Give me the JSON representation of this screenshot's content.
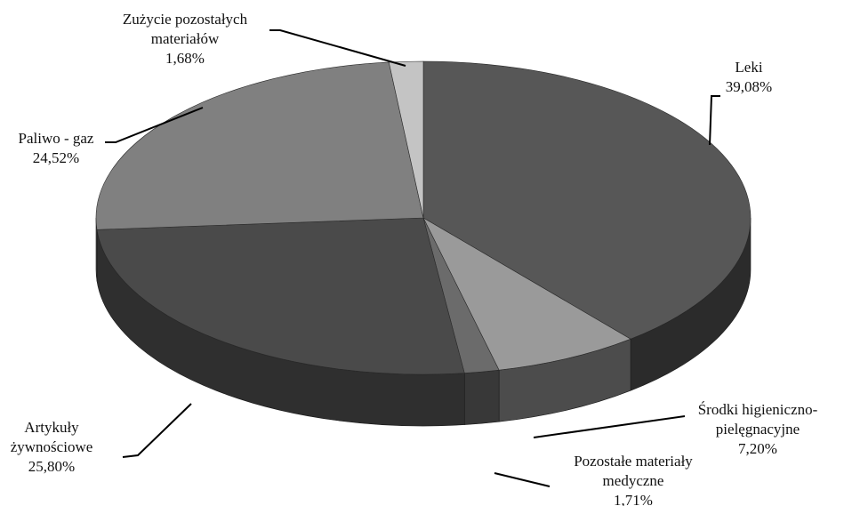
{
  "chart_data": {
    "type": "pie",
    "title": "",
    "three_d": true,
    "legend": "none",
    "slices": [
      {
        "label_lines": [
          "Leki",
          "39,08%"
        ],
        "value": 39.08,
        "color": "#575757",
        "side_color": "#2b2b2b"
      },
      {
        "label_lines": [
          "Środki higieniczno-",
          "pielęgnacyjne",
          "7,20%"
        ],
        "value": 7.2,
        "color": "#9a9a9a",
        "side_color": "#4c4c4c"
      },
      {
        "label_lines": [
          "Pozostałe materiały",
          "medyczne",
          "1,71%"
        ],
        "value": 1.71,
        "color": "#6b6b6b",
        "side_color": "#383838"
      },
      {
        "label_lines": [
          "Artykuły",
          "żywnościowe",
          "25,80%"
        ],
        "value": 25.8,
        "color": "#4a4a4a",
        "side_color": "#2f2f2f"
      },
      {
        "label_lines": [
          "Paliwo - gaz",
          "24,52%"
        ],
        "value": 24.52,
        "color": "#808080",
        "side_color": "#505050"
      },
      {
        "label_lines": [
          "Zużycie pozostałych",
          "materiałów",
          "1,68%"
        ],
        "value": 1.68,
        "color": "#c4c4c4",
        "side_color": "#8a8a8a"
      }
    ]
  }
}
